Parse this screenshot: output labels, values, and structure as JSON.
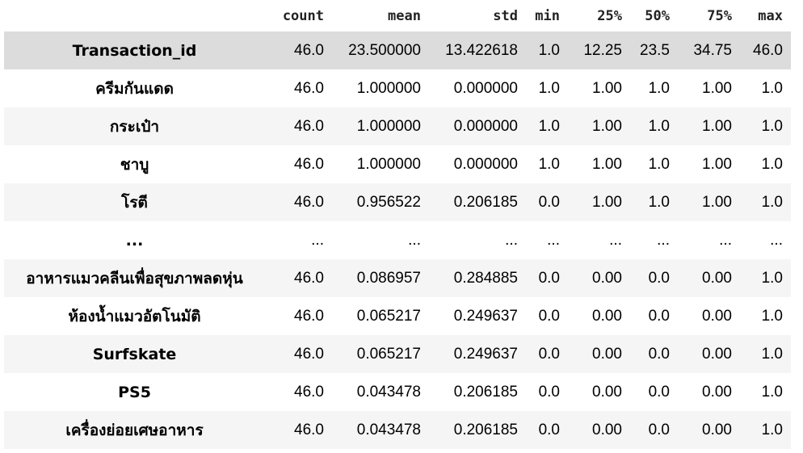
{
  "columns": [
    "count",
    "mean",
    "std",
    "min",
    "25%",
    "50%",
    "75%",
    "max"
  ],
  "rows": [
    {
      "label": "Transaction_id",
      "values": [
        "46.0",
        "23.500000",
        "13.422618",
        "1.0",
        "12.25",
        "23.5",
        "34.75",
        "46.0"
      ]
    },
    {
      "label": "ครีมกันแดด",
      "values": [
        "46.0",
        "1.000000",
        "0.000000",
        "1.0",
        "1.00",
        "1.0",
        "1.00",
        "1.0"
      ]
    },
    {
      "label": "กระเป๋า",
      "values": [
        "46.0",
        "1.000000",
        "0.000000",
        "1.0",
        "1.00",
        "1.0",
        "1.00",
        "1.0"
      ]
    },
    {
      "label": "ชาบู",
      "values": [
        "46.0",
        "1.000000",
        "0.000000",
        "1.0",
        "1.00",
        "1.0",
        "1.00",
        "1.0"
      ]
    },
    {
      "label": "โรตี",
      "values": [
        "46.0",
        "0.956522",
        "0.206185",
        "0.0",
        "1.00",
        "1.0",
        "1.00",
        "1.0"
      ]
    },
    {
      "label": "...",
      "values": [
        "...",
        "...",
        "...",
        "...",
        "...",
        "...",
        "...",
        "..."
      ]
    },
    {
      "label": "อาหารแมวคลีนเพื่อสุขภาพลดหุ่น",
      "values": [
        "46.0",
        "0.086957",
        "0.284885",
        "0.0",
        "0.00",
        "0.0",
        "0.00",
        "1.0"
      ]
    },
    {
      "label": "ห้องน้ำแมวอัตโนมัติ",
      "values": [
        "46.0",
        "0.065217",
        "0.249637",
        "0.0",
        "0.00",
        "0.0",
        "0.00",
        "1.0"
      ]
    },
    {
      "label": "Surfskate",
      "values": [
        "46.0",
        "0.065217",
        "0.249637",
        "0.0",
        "0.00",
        "0.0",
        "0.00",
        "1.0"
      ]
    },
    {
      "label": "PS5",
      "values": [
        "46.0",
        "0.043478",
        "0.206185",
        "0.0",
        "0.00",
        "0.0",
        "0.00",
        "1.0"
      ]
    },
    {
      "label": "เครื่องย่อยเศษอาหาร",
      "values": [
        "46.0",
        "0.043478",
        "0.206185",
        "0.0",
        "0.00",
        "0.0",
        "0.00",
        "1.0"
      ]
    }
  ]
}
